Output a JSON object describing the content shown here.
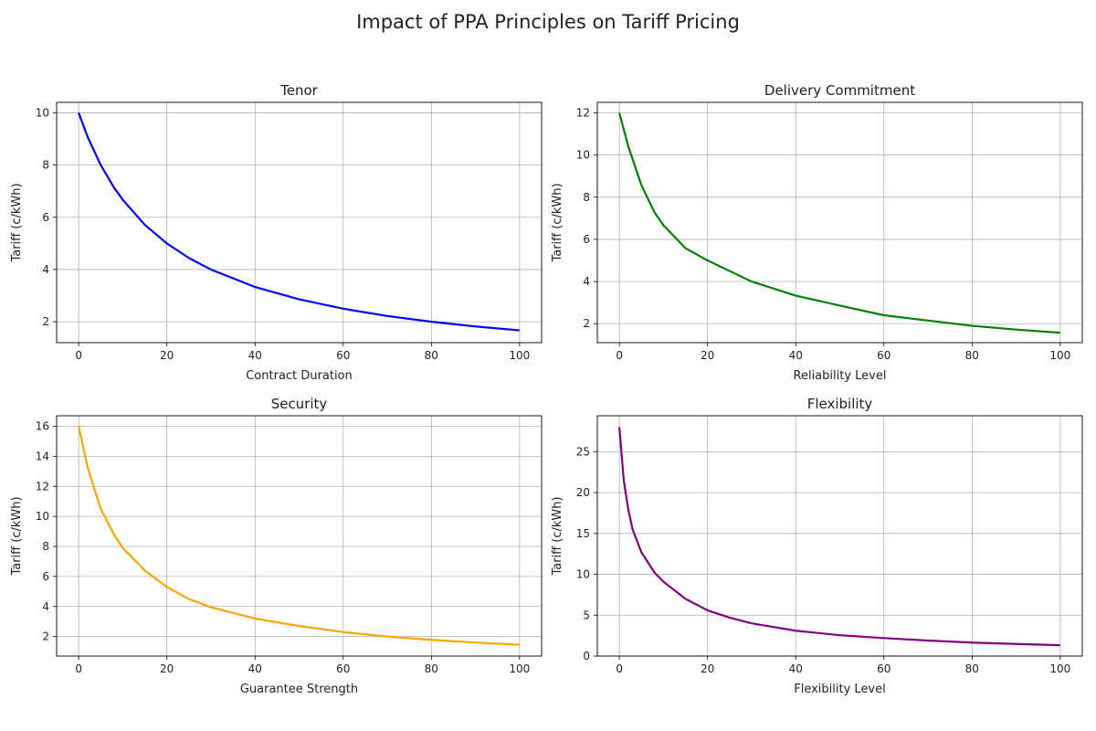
{
  "figure": {
    "title": "Impact of PPA Principles on Tariff Pricing"
  },
  "chart_data": [
    {
      "type": "line",
      "title": "Tenor",
      "xlabel": "Contract Duration",
      "ylabel": "Tariff (c/kWh)",
      "xlim": [
        -5,
        105
      ],
      "ylim": [
        1.2,
        10.4
      ],
      "xticks": [
        0,
        20,
        40,
        60,
        80,
        100
      ],
      "yticks": [
        2,
        4,
        6,
        8,
        10
      ],
      "grid": true,
      "series": [
        {
          "color": "#0000ff",
          "x": [
            0,
            2,
            5,
            8,
            10,
            15,
            20,
            25,
            30,
            40,
            50,
            60,
            70,
            80,
            90,
            100
          ],
          "y": [
            10,
            9.09,
            8.0,
            7.14,
            6.67,
            5.71,
            5.0,
            4.44,
            4.0,
            3.33,
            2.86,
            2.5,
            2.22,
            2.0,
            1.82,
            1.67
          ]
        }
      ]
    },
    {
      "type": "line",
      "title": "Delivery Commitment",
      "xlabel": "Reliability Level",
      "ylabel": "Tariff (c/kWh)",
      "xlim": [
        -5,
        105
      ],
      "ylim": [
        1.1,
        12.5
      ],
      "xticks": [
        0,
        20,
        40,
        60,
        80,
        100
      ],
      "yticks": [
        2,
        4,
        6,
        8,
        10,
        12
      ],
      "grid": true,
      "series": [
        {
          "color": "#008000",
          "x": [
            0,
            2,
            5,
            8,
            10,
            15,
            20,
            25,
            30,
            40,
            50,
            60,
            70,
            80,
            90,
            100
          ],
          "y": [
            12,
            10.43,
            8.57,
            7.27,
            6.67,
            5.58,
            5.0,
            4.5,
            4.0,
            3.33,
            2.86,
            2.4,
            2.15,
            1.9,
            1.72,
            1.57
          ]
        }
      ]
    },
    {
      "type": "line",
      "title": "Security",
      "xlabel": "Guarantee Strength",
      "ylabel": "Tariff (c/kWh)",
      "xlim": [
        -5,
        105
      ],
      "ylim": [
        0.7,
        16.7
      ],
      "xticks": [
        0,
        20,
        40,
        60,
        80,
        100
      ],
      "yticks": [
        2,
        4,
        6,
        8,
        10,
        12,
        14,
        16
      ],
      "grid": true,
      "series": [
        {
          "color": "#ffa500",
          "x": [
            0,
            2,
            5,
            8,
            10,
            15,
            20,
            25,
            30,
            40,
            50,
            60,
            70,
            80,
            90,
            100
          ],
          "y": [
            16,
            13.3,
            10.5,
            8.8,
            7.9,
            6.4,
            5.3,
            4.5,
            3.95,
            3.2,
            2.7,
            2.3,
            2.0,
            1.78,
            1.6,
            1.45
          ]
        }
      ]
    },
    {
      "type": "line",
      "title": "Flexibility",
      "xlabel": "Flexibility Level",
      "ylabel": "Tariff (c/kWh)",
      "xlim": [
        -5,
        105
      ],
      "ylim": [
        0,
        29.4
      ],
      "xticks": [
        0,
        20,
        40,
        60,
        80,
        100
      ],
      "yticks": [
        0,
        5,
        10,
        15,
        20,
        25
      ],
      "grid": true,
      "series": [
        {
          "color": "#800080",
          "x": [
            0,
            1,
            2,
            3,
            5,
            8,
            10,
            15,
            20,
            25,
            30,
            40,
            50,
            60,
            70,
            80,
            90,
            100
          ],
          "y": [
            28,
            21.5,
            18.0,
            15.5,
            12.7,
            10.2,
            9.1,
            7.0,
            5.6,
            4.7,
            4.0,
            3.1,
            2.55,
            2.2,
            1.9,
            1.65,
            1.48,
            1.33
          ]
        }
      ]
    }
  ]
}
